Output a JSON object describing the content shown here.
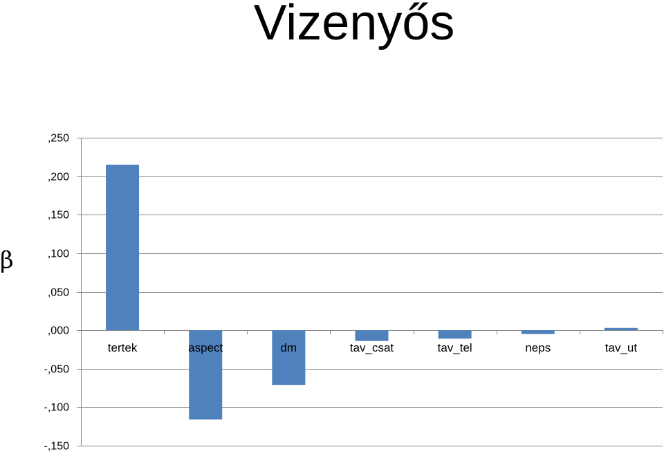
{
  "slide": {
    "title": "Vizenyős",
    "y_symbol": "β"
  },
  "chart_data": {
    "type": "bar",
    "title": "",
    "xlabel": "",
    "ylabel": "β",
    "categories": [
      "tertek",
      "aspect",
      "dm",
      "tav_csat",
      "tav_tel",
      "neps",
      "tav_ut"
    ],
    "values": [
      0.215,
      -0.116,
      -0.071,
      -0.014,
      -0.011,
      -0.005,
      0.003
    ],
    "ylim": [
      -0.15,
      0.25
    ],
    "yticks": [
      0.25,
      0.2,
      0.15,
      0.1,
      0.05,
      0.0,
      -0.05,
      -0.1,
      -0.15
    ],
    "ytick_labels": [
      ",250",
      ",200",
      ",150",
      ",100",
      ",050",
      ",000",
      "-,050",
      "-,100",
      "-,150"
    ],
    "grid": true,
    "legend": "none",
    "bar_color": "#4F81BD",
    "grid_color": "#868686",
    "axis_color": "#868686"
  }
}
